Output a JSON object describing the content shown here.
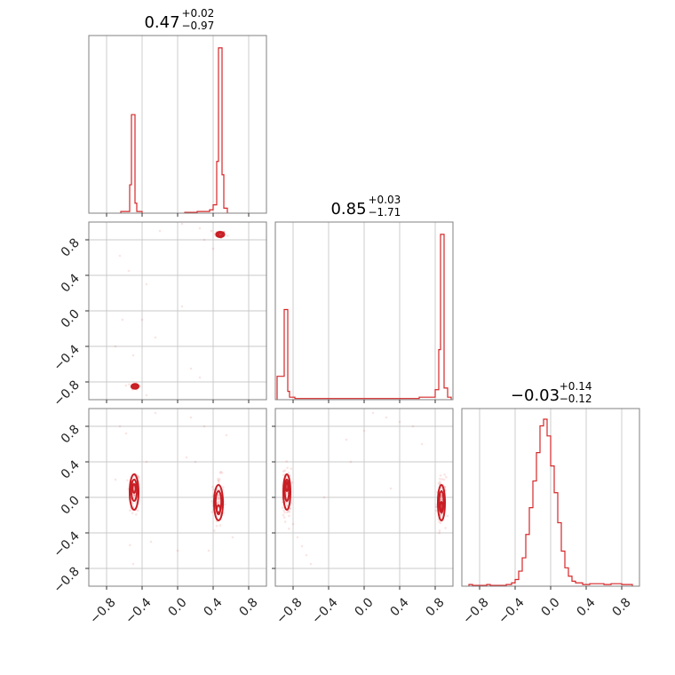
{
  "chart_data": {
    "type": "corner",
    "color": "#d62728",
    "grid": true,
    "tick_values": [
      -0.8,
      -0.4,
      0.0,
      0.4,
      0.8
    ],
    "tick_labels": [
      "−0.8",
      "−0.4",
      "0.0",
      "0.4",
      "0.8"
    ],
    "params": [
      {
        "median": "0.47",
        "plus": "+0.02",
        "minus": "−0.97",
        "range": [
          -1,
          1
        ]
      },
      {
        "median": "0.85",
        "plus": "+0.03",
        "minus": "−1.71",
        "range": [
          -1,
          1
        ]
      },
      {
        "median": "−0.03",
        "plus": "+0.14",
        "minus": "−0.12",
        "range": [
          -1,
          1
        ]
      }
    ],
    "histograms": [
      {
        "param": 0,
        "bins": [
          {
            "x0": -0.64,
            "x1": -0.54,
            "h": 0.01
          },
          {
            "x0": -0.54,
            "x1": -0.52,
            "h": 0.17
          },
          {
            "x0": -0.52,
            "x1": -0.48,
            "h": 0.59
          },
          {
            "x0": -0.48,
            "x1": -0.46,
            "h": 0.06
          },
          {
            "x0": -0.46,
            "x1": -0.4,
            "h": 0.01
          },
          {
            "x0": 0.08,
            "x1": 0.22,
            "h": 0.005
          },
          {
            "x0": 0.22,
            "x1": 0.36,
            "h": 0.01
          },
          {
            "x0": 0.36,
            "x1": 0.4,
            "h": 0.02
          },
          {
            "x0": 0.4,
            "x1": 0.44,
            "h": 0.05
          },
          {
            "x0": 0.44,
            "x1": 0.46,
            "h": 0.31
          },
          {
            "x0": 0.46,
            "x1": 0.5,
            "h": 0.99
          },
          {
            "x0": 0.5,
            "x1": 0.52,
            "h": 0.23
          },
          {
            "x0": 0.52,
            "x1": 0.56,
            "h": 0.03
          }
        ]
      },
      {
        "param": 1,
        "bins": [
          {
            "x0": -0.98,
            "x1": -0.9,
            "h": 0.14
          },
          {
            "x0": -0.9,
            "x1": -0.86,
            "h": 0.54
          },
          {
            "x0": -0.86,
            "x1": -0.84,
            "h": 0.05
          },
          {
            "x0": -0.84,
            "x1": -0.78,
            "h": 0.015
          },
          {
            "x0": -0.78,
            "x1": 0.62,
            "h": 0.007
          },
          {
            "x0": 0.62,
            "x1": 0.8,
            "h": 0.015
          },
          {
            "x0": 0.8,
            "x1": 0.84,
            "h": 0.06
          },
          {
            "x0": 0.84,
            "x1": 0.86,
            "h": 0.3
          },
          {
            "x0": 0.86,
            "x1": 0.9,
            "h": 0.99
          },
          {
            "x0": 0.9,
            "x1": 0.94,
            "h": 0.07
          },
          {
            "x0": 0.94,
            "x1": 0.98,
            "h": 0.015
          }
        ]
      },
      {
        "param": 2,
        "bins": [
          {
            "x0": -0.92,
            "x1": -0.88,
            "h": 0.01
          },
          {
            "x0": -0.88,
            "x1": -0.72,
            "h": 0.005
          },
          {
            "x0": -0.72,
            "x1": -0.68,
            "h": 0.01
          },
          {
            "x0": -0.68,
            "x1": -0.5,
            "h": 0.005
          },
          {
            "x0": -0.5,
            "x1": -0.44,
            "h": 0.01
          },
          {
            "x0": -0.44,
            "x1": -0.4,
            "h": 0.02
          },
          {
            "x0": -0.4,
            "x1": -0.36,
            "h": 0.04
          },
          {
            "x0": -0.36,
            "x1": -0.32,
            "h": 0.09
          },
          {
            "x0": -0.32,
            "x1": -0.28,
            "h": 0.17
          },
          {
            "x0": -0.28,
            "x1": -0.24,
            "h": 0.31
          },
          {
            "x0": -0.24,
            "x1": -0.2,
            "h": 0.47
          },
          {
            "x0": -0.2,
            "x1": -0.16,
            "h": 0.63
          },
          {
            "x0": -0.16,
            "x1": -0.12,
            "h": 0.8
          },
          {
            "x0": -0.12,
            "x1": -0.08,
            "h": 0.96
          },
          {
            "x0": -0.08,
            "x1": -0.04,
            "h": 1.0
          },
          {
            "x0": -0.04,
            "x1": 0.0,
            "h": 0.9
          },
          {
            "x0": 0.0,
            "x1": 0.04,
            "h": 0.72
          },
          {
            "x0": 0.04,
            "x1": 0.08,
            "h": 0.56
          },
          {
            "x0": 0.08,
            "x1": 0.12,
            "h": 0.38
          },
          {
            "x0": 0.12,
            "x1": 0.16,
            "h": 0.21
          },
          {
            "x0": 0.16,
            "x1": 0.2,
            "h": 0.11
          },
          {
            "x0": 0.2,
            "x1": 0.24,
            "h": 0.06
          },
          {
            "x0": 0.24,
            "x1": 0.28,
            "h": 0.03
          },
          {
            "x0": 0.28,
            "x1": 0.36,
            "h": 0.02
          },
          {
            "x0": 0.36,
            "x1": 0.44,
            "h": 0.01
          },
          {
            "x0": 0.44,
            "x1": 0.6,
            "h": 0.015
          },
          {
            "x0": 0.6,
            "x1": 0.68,
            "h": 0.01
          },
          {
            "x0": 0.68,
            "x1": 0.8,
            "h": 0.015
          },
          {
            "x0": 0.8,
            "x1": 0.92,
            "h": 0.01
          }
        ]
      }
    ],
    "scatter_panels": [
      {
        "x_param": 0,
        "y_param": 1,
        "modes": [
          {
            "x": 0.48,
            "y": 0.86,
            "sx": 0.03,
            "sy": 0.02,
            "n": 70
          },
          {
            "x": -0.48,
            "y": -0.85,
            "sx": 0.025,
            "sy": 0.02,
            "n": 50
          }
        ],
        "outliers": [
          [
            -0.2,
            0.9
          ],
          [
            0.05,
            0.98
          ],
          [
            0.25,
            0.93
          ],
          [
            0.3,
            0.8
          ],
          [
            -0.65,
            0.62
          ],
          [
            -0.55,
            0.45
          ],
          [
            -0.35,
            0.3
          ],
          [
            0.05,
            0.05
          ],
          [
            -0.4,
            -0.1
          ],
          [
            -0.62,
            -0.1
          ],
          [
            -0.25,
            -0.3
          ],
          [
            -0.5,
            -0.5
          ],
          [
            -0.7,
            -0.4
          ],
          [
            0.15,
            -0.65
          ],
          [
            0.25,
            -0.75
          ],
          [
            -0.35,
            -0.95
          ],
          [
            0.4,
            0.7
          ],
          [
            0.38,
            0.9
          ]
        ],
        "contours": [
          {
            "x": 0.48,
            "y": 0.86,
            "rx": 0.045,
            "ry": 0.03
          },
          {
            "x": 0.48,
            "y": 0.86,
            "rx": 0.025,
            "ry": 0.015
          },
          {
            "x": -0.48,
            "y": -0.85,
            "rx": 0.04,
            "ry": 0.028
          },
          {
            "x": -0.48,
            "y": -0.85,
            "rx": 0.02,
            "ry": 0.012
          }
        ]
      },
      {
        "x_param": 0,
        "y_param": 2,
        "modes": [
          {
            "x": -0.49,
            "y": 0.05,
            "sx": 0.03,
            "sy": 0.14,
            "n": 90
          },
          {
            "x": 0.46,
            "y": -0.05,
            "sx": 0.03,
            "sy": 0.14,
            "n": 90
          }
        ],
        "outliers": [
          [
            -0.65,
            0.8
          ],
          [
            -0.58,
            0.72
          ],
          [
            -0.35,
            0.4
          ],
          [
            0.15,
            0.9
          ],
          [
            0.3,
            0.8
          ],
          [
            0.1,
            0.45
          ],
          [
            0.2,
            0.4
          ],
          [
            0.0,
            -0.6
          ],
          [
            -0.3,
            -0.5
          ],
          [
            0.35,
            -0.6
          ],
          [
            -0.5,
            -0.75
          ],
          [
            0.55,
            0.7
          ],
          [
            -0.7,
            0.2
          ],
          [
            0.62,
            -0.45
          ],
          [
            -0.25,
            0.95
          ]
        ],
        "contours": [
          {
            "x": -0.49,
            "y": 0.06,
            "rx": 0.05,
            "ry": 0.2
          },
          {
            "x": -0.49,
            "y": 0.08,
            "rx": 0.032,
            "ry": 0.12
          },
          {
            "x": -0.49,
            "y": 0.1,
            "rx": 0.016,
            "ry": 0.05
          },
          {
            "x": 0.46,
            "y": -0.06,
            "rx": 0.05,
            "ry": 0.2
          },
          {
            "x": 0.46,
            "y": -0.05,
            "rx": 0.032,
            "ry": 0.12
          },
          {
            "x": 0.46,
            "y": -0.14,
            "rx": 0.02,
            "ry": 0.05
          }
        ]
      },
      {
        "x_param": 1,
        "y_param": 2,
        "modes": [
          {
            "x": -0.87,
            "y": 0.05,
            "sx": 0.025,
            "sy": 0.14,
            "n": 90
          },
          {
            "x": 0.87,
            "y": -0.05,
            "sx": 0.025,
            "sy": 0.14,
            "n": 90
          }
        ],
        "outliers": [
          [
            -0.8,
            -0.3
          ],
          [
            -0.75,
            -0.45
          ],
          [
            -0.7,
            -0.55
          ],
          [
            -0.65,
            -0.65
          ],
          [
            -0.6,
            -0.75
          ],
          [
            -0.2,
            0.65
          ],
          [
            0.1,
            0.95
          ],
          [
            0.25,
            0.9
          ],
          [
            0.4,
            0.85
          ],
          [
            0.55,
            0.8
          ],
          [
            0.65,
            0.6
          ],
          [
            -0.15,
            0.4
          ],
          [
            -0.45,
            0.0
          ],
          [
            0.3,
            0.1
          ],
          [
            0.0,
            0.75
          ]
        ],
        "contours": [
          {
            "x": -0.87,
            "y": 0.06,
            "rx": 0.04,
            "ry": 0.2
          },
          {
            "x": -0.87,
            "y": 0.08,
            "rx": 0.025,
            "ry": 0.12
          },
          {
            "x": -0.87,
            "y": 0.12,
            "rx": 0.012,
            "ry": 0.05
          },
          {
            "x": 0.87,
            "y": -0.06,
            "rx": 0.04,
            "ry": 0.2
          },
          {
            "x": 0.87,
            "y": -0.05,
            "rx": 0.025,
            "ry": 0.12
          },
          {
            "x": 0.87,
            "y": -0.1,
            "rx": 0.012,
            "ry": 0.05
          }
        ]
      }
    ]
  }
}
